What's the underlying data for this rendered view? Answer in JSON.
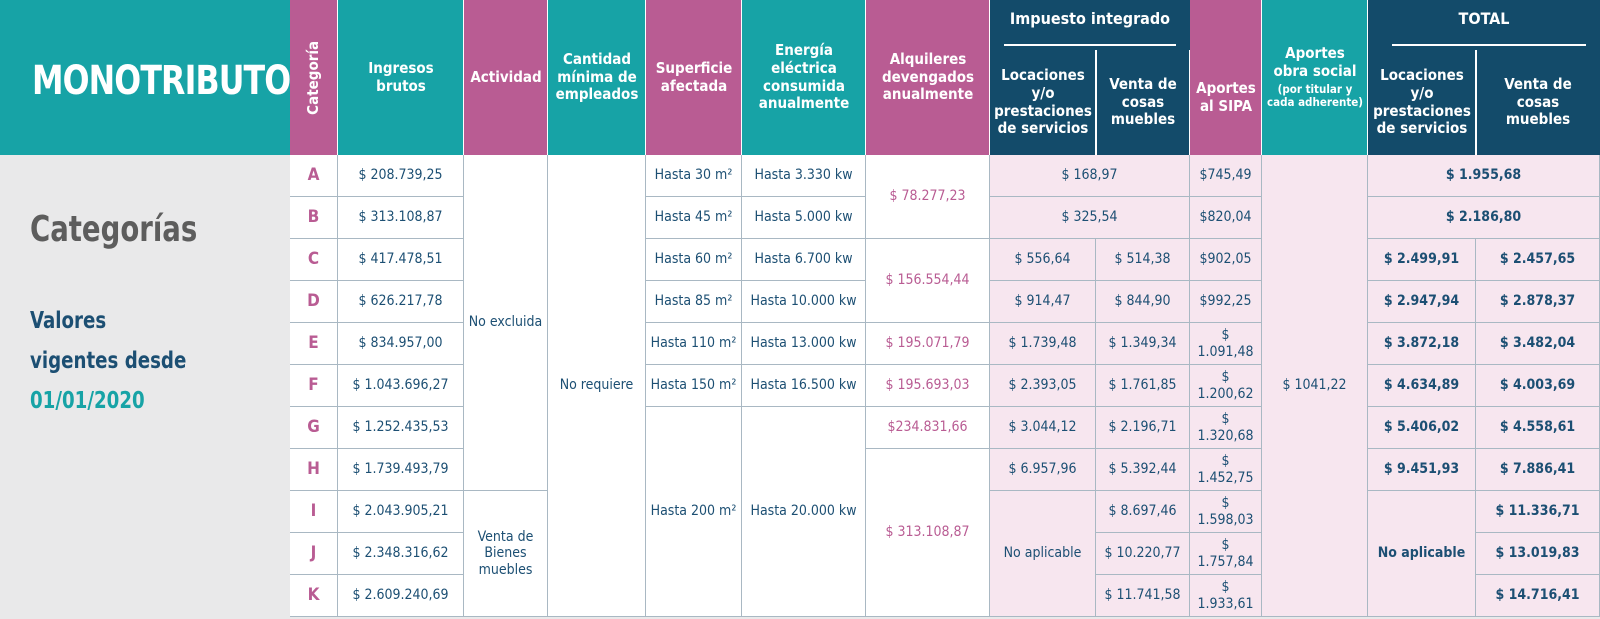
{
  "brand": "MONOTRIBUTO",
  "sidebar": {
    "title": "Categorías",
    "valid_line1": "Valores",
    "valid_line2": "vigentes desde",
    "valid_date": "01/01/2020"
  },
  "headers": {
    "categoria": "Categoría",
    "ingresos": "Ingresos brutos",
    "actividad": "Actividad",
    "empleados": "Cantidad mínima de empleados",
    "superficie": "Superficie afectada",
    "energia": "Energía eléctrica consumida anualmente",
    "alquileres": "Alquileres devengados anualmente",
    "impuesto": "Impuesto integrado",
    "impuesto_locaciones": "Locaciones y/o prestaciones de servicios",
    "impuesto_venta": "Venta de cosas muebles",
    "sipa": "Aportes al SIPA",
    "obra_social": "Aportes obra social",
    "obra_social_note": "(por titular y cada adherente)",
    "total": "TOTAL",
    "total_locaciones": "Locaciones y/o prestaciones de servicios",
    "total_venta": "Venta de cosas muebles"
  },
  "rows": [
    {
      "cat": "A",
      "ingresos": "$ 208.739,25",
      "superficie": "Hasta 30 m²",
      "energia": "Hasta 3.330 kw",
      "imp_loc": "",
      "imp_venta": "",
      "sipa": "$745,49",
      "total_loc": "",
      "total_venta": ""
    },
    {
      "cat": "B",
      "ingresos": "$ 313.108,87",
      "superficie": "Hasta 45 m²",
      "energia": "Hasta 5.000 kw",
      "imp_loc": "",
      "imp_venta": "",
      "sipa": "$820,04",
      "total_loc": "",
      "total_venta": ""
    },
    {
      "cat": "C",
      "ingresos": "$ 417.478,51",
      "superficie": "Hasta 60 m²",
      "energia": "Hasta 6.700 kw",
      "imp_loc": "$ 556,64",
      "imp_venta": "$ 514,38",
      "sipa": "$902,05",
      "total_loc": "$ 2.499,91",
      "total_venta": "$ 2.457,65"
    },
    {
      "cat": "D",
      "ingresos": "$ 626.217,78",
      "superficie": "Hasta 85 m²",
      "energia": "Hasta 10.000 kw",
      "imp_loc": "$ 914,47",
      "imp_venta": "$ 844,90",
      "sipa": "$992,25",
      "total_loc": "$ 2.947,94",
      "total_venta": "$ 2.878,37"
    },
    {
      "cat": "E",
      "ingresos": "$ 834.957,00",
      "superficie": "Hasta 110 m²",
      "energia": "Hasta 13.000 kw",
      "imp_loc": "$ 1.739,48",
      "imp_venta": "$ 1.349,34",
      "sipa": "$ 1.091,48",
      "total_loc": "$ 3.872,18",
      "total_venta": "$ 3.482,04"
    },
    {
      "cat": "F",
      "ingresos": "$ 1.043.696,27",
      "superficie": "Hasta 150 m²",
      "energia": "Hasta 16.500 kw",
      "imp_loc": "$ 2.393,05",
      "imp_venta": "$ 1.761,85",
      "sipa": "$ 1.200,62",
      "total_loc": "$ 4.634,89",
      "total_venta": "$ 4.003,69"
    },
    {
      "cat": "G",
      "ingresos": "$ 1.252.435,53",
      "superficie": "",
      "energia": "",
      "imp_loc": "$ 3.044,12",
      "imp_venta": "$ 2.196,71",
      "sipa": "$ 1.320,68",
      "total_loc": "$ 5.406,02",
      "total_venta": "$ 4.558,61"
    },
    {
      "cat": "H",
      "ingresos": "$ 1.739.493,79",
      "superficie": "",
      "energia": "",
      "imp_loc": "$ 6.957,96",
      "imp_venta": "$ 5.392,44",
      "sipa": "$ 1.452,75",
      "total_loc": "$ 9.451,93",
      "total_venta": "$ 7.886,41"
    },
    {
      "cat": "I",
      "ingresos": "$ 2.043.905,21",
      "superficie": "",
      "energia": "",
      "imp_loc": "",
      "imp_venta": "$ 8.697,46",
      "sipa": "$ 1.598,03",
      "total_loc": "",
      "total_venta": "$ 11.336,71"
    },
    {
      "cat": "J",
      "ingresos": "$ 2.348.316,62",
      "superficie": "",
      "energia": "",
      "imp_loc": "",
      "imp_venta": "$ 10.220,77",
      "sipa": "$ 1.757,84",
      "total_loc": "",
      "total_venta": "$ 13.019,83"
    },
    {
      "cat": "K",
      "ingresos": "$ 2.609.240,69",
      "superficie": "",
      "energia": "",
      "imp_loc": "",
      "imp_venta": "$ 11.741,58",
      "sipa": "$ 1.933,61",
      "total_loc": "",
      "total_venta": "$ 14.716,41"
    }
  ],
  "merged": {
    "actividad_ah": "No excluida",
    "actividad_ik": "Venta de Bienes muebles",
    "empleados": "No requiere",
    "superficie_gk": "Hasta 200 m²",
    "energia_gk": "Hasta 20.000 kw",
    "alq_ab": "$ 78.277,23",
    "alq_cd": "$ 156.554,44",
    "alq_e": "$ 195.071,79",
    "alq_f": "$ 195.693,03",
    "alq_g": "$234.831,66",
    "alq_hk": "$ 313.108,87",
    "imp_a": "$ 168,97",
    "imp_b": "$ 325,54",
    "imp_loc_ik": "No aplicable",
    "obra_social": "$ 1041,22",
    "total_a": "$ 1.955,68",
    "total_b": "$ 2.186,80",
    "total_loc_ik": "No aplicable"
  },
  "colors": {
    "teal": "#17a3a6",
    "pink": "#b95c93",
    "navy": "#134b6a",
    "pink_light": "#f7e6ef",
    "text_blue": "#1c4f73"
  }
}
